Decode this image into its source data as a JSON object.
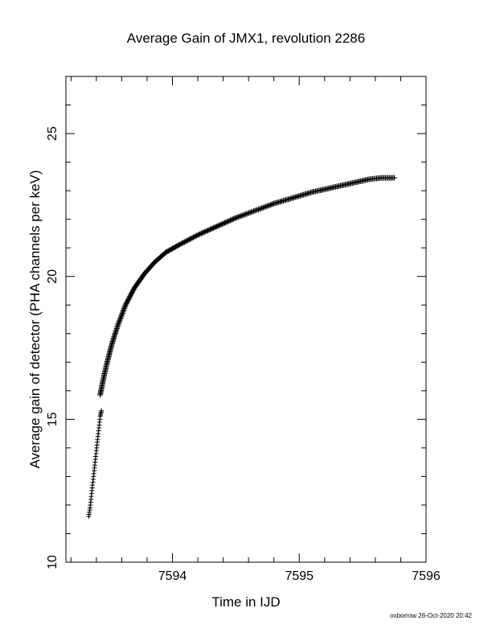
{
  "chart_data": {
    "type": "scatter",
    "title": "Average Gain of JMX1, revolution 2286",
    "xlabel": "Time in IJD",
    "ylabel": "Average gain of detector (PHA channels per keV)",
    "xlim": [
      7593.16,
      7596
    ],
    "ylim": [
      10,
      27
    ],
    "x_ticks": [
      7594,
      7595,
      7596
    ],
    "y_ticks": [
      10,
      15,
      20,
      25
    ],
    "grid": false,
    "marker": "plus",
    "series": [
      {
        "points_early": [
          [
            7593.34,
            11.6
          ],
          [
            7593.35,
            11.9
          ],
          [
            7593.36,
            12.3
          ],
          [
            7593.37,
            12.7
          ],
          [
            7593.38,
            13.1
          ],
          [
            7593.39,
            13.5
          ],
          [
            7593.4,
            13.9
          ],
          [
            7593.41,
            14.3
          ],
          [
            7593.42,
            14.7
          ],
          [
            7593.43,
            15.1
          ],
          [
            7593.44,
            15.3
          ]
        ],
        "curve": [
          [
            7593.43,
            15.85
          ],
          [
            7593.45,
            16.3
          ],
          [
            7593.48,
            16.9
          ],
          [
            7593.52,
            17.6
          ],
          [
            7593.57,
            18.3
          ],
          [
            7593.63,
            19.0
          ],
          [
            7593.7,
            19.6
          ],
          [
            7593.78,
            20.1
          ],
          [
            7593.86,
            20.5
          ],
          [
            7593.95,
            20.85
          ],
          [
            7594.05,
            21.1
          ],
          [
            7594.2,
            21.45
          ],
          [
            7594.35,
            21.75
          ],
          [
            7594.5,
            22.05
          ],
          [
            7594.65,
            22.3
          ],
          [
            7594.8,
            22.55
          ],
          [
            7594.95,
            22.75
          ],
          [
            7595.1,
            22.95
          ],
          [
            7595.25,
            23.1
          ],
          [
            7595.4,
            23.25
          ],
          [
            7595.55,
            23.4
          ],
          [
            7595.65,
            23.45
          ],
          [
            7595.75,
            23.45
          ]
        ]
      }
    ]
  },
  "footer": "oxborrow 26-Oct-2020 20:42"
}
